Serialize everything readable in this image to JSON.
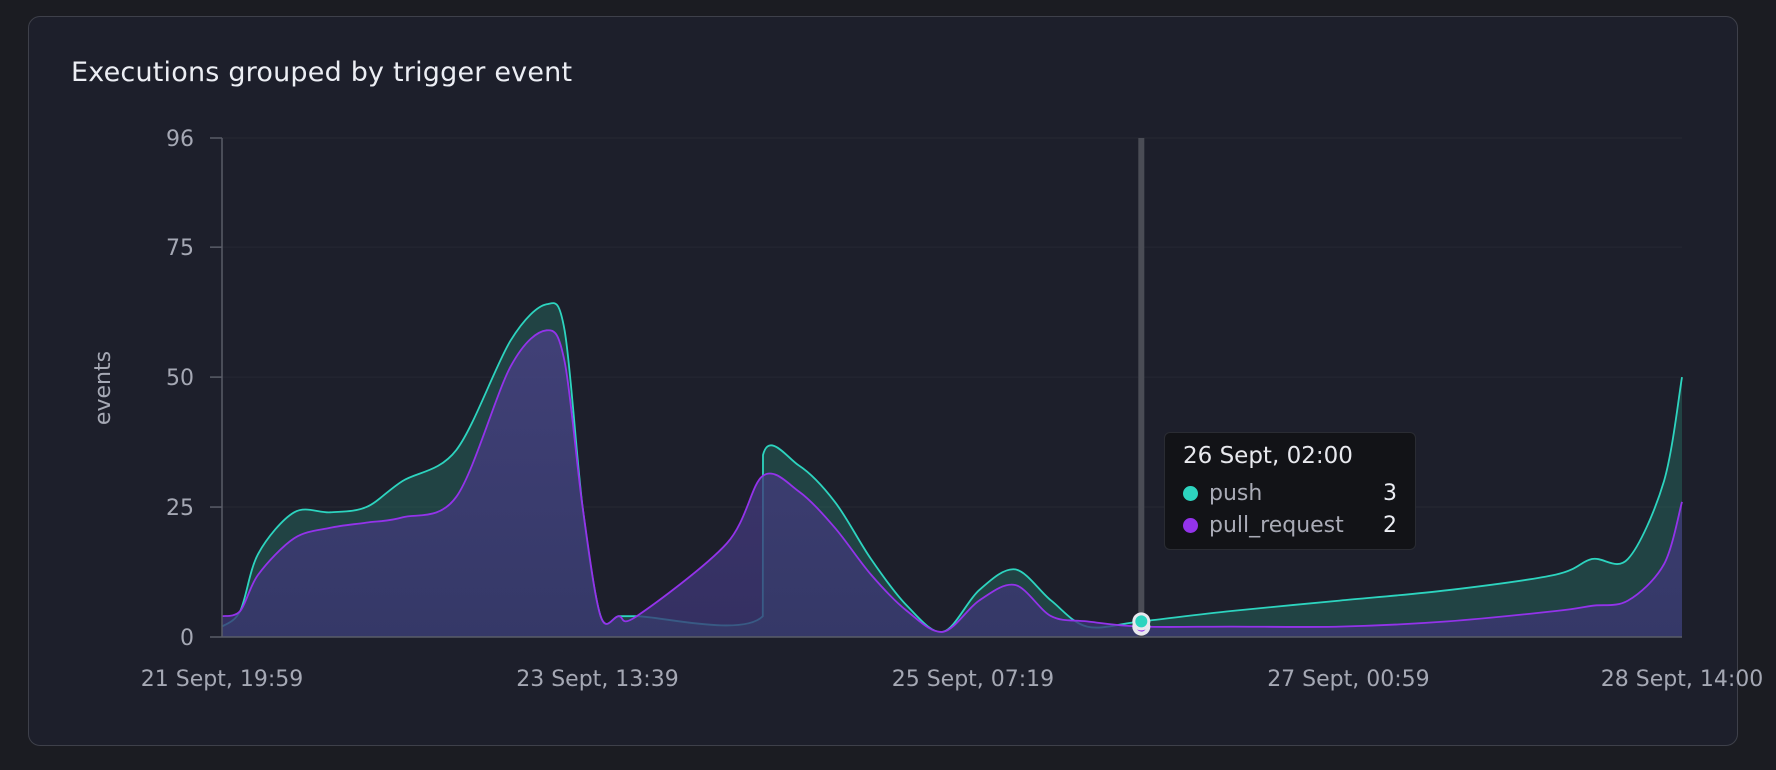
{
  "card": {
    "title": "Executions grouped by trigger event"
  },
  "tooltip": {
    "title": "26 Sept, 02:00",
    "rows": [
      {
        "name": "push",
        "value": "3",
        "color": "#2dd4bf"
      },
      {
        "name": "pull_request",
        "value": "2",
        "color": "#9333ea"
      }
    ]
  },
  "chart_data": {
    "type": "area",
    "title": "Executions grouped by trigger event",
    "xlabel": "",
    "ylabel": "events",
    "ylim": [
      0,
      96
    ],
    "yticks": [
      0,
      25,
      50,
      75,
      96
    ],
    "xticks": [
      "21 Sept, 19:59",
      "23 Sept, 13:39",
      "25 Sept, 07:19",
      "27 Sept, 00:59",
      "28 Sept, 14:00"
    ],
    "x_range": [
      "21 Sept, 19:59",
      "28 Sept, 14:00"
    ],
    "grid": true,
    "legend": "none",
    "highlight": {
      "x": "26 Sept, 02:00",
      "push": 3,
      "pull_request": 2
    },
    "series": [
      {
        "name": "push",
        "color": "#2dd4bf",
        "x": [
          "21 Sept, 19:59",
          "21 Sept, 22:00",
          "22 Sept, 00:00",
          "22 Sept, 04:00",
          "22 Sept, 08:00",
          "22 Sept, 12:00",
          "22 Sept, 16:00",
          "22 Sept, 22:00",
          "23 Sept, 04:00",
          "23 Sept, 08:00",
          "23 Sept, 10:00",
          "23 Sept, 12:00",
          "23 Sept, 14:00",
          "23 Sept, 16:00",
          "23 Sept, 18:00",
          "24 Sept, 08:00",
          "24 Sept, 08:01",
          "24 Sept, 12:00",
          "24 Sept, 16:00",
          "24 Sept, 20:00",
          "25 Sept, 00:00",
          "25 Sept, 04:00",
          "25 Sept, 08:00",
          "25 Sept, 12:00",
          "25 Sept, 16:00",
          "25 Sept, 20:00",
          "26 Sept, 02:00",
          "26 Sept, 12:00",
          "27 Sept, 00:00",
          "27 Sept, 12:00",
          "28 Sept, 00:00",
          "28 Sept, 04:00",
          "28 Sept, 08:00",
          "28 Sept, 12:00",
          "28 Sept, 14:00"
        ],
        "y": [
          2,
          5,
          16,
          24,
          24,
          25,
          30,
          36,
          57,
          64,
          59,
          25,
          4,
          4,
          4,
          4,
          35,
          33,
          26,
          15,
          6,
          1,
          9,
          13,
          7,
          2,
          3,
          5,
          7,
          9,
          12,
          15,
          15,
          30,
          50
        ]
      },
      {
        "name": "pull_request",
        "color": "#9333ea",
        "x": [
          "21 Sept, 19:59",
          "21 Sept, 22:00",
          "22 Sept, 00:00",
          "22 Sept, 04:00",
          "22 Sept, 08:00",
          "22 Sept, 12:00",
          "22 Sept, 16:00",
          "22 Sept, 22:00",
          "23 Sept, 04:00",
          "23 Sept, 08:00",
          "23 Sept, 10:00",
          "23 Sept, 12:00",
          "23 Sept, 14:00",
          "23 Sept, 16:00",
          "23 Sept, 18:00",
          "24 Sept, 04:00",
          "24 Sept, 08:00",
          "24 Sept, 12:00",
          "24 Sept, 16:00",
          "24 Sept, 20:00",
          "25 Sept, 00:00",
          "25 Sept, 04:00",
          "25 Sept, 08:00",
          "25 Sept, 12:00",
          "25 Sept, 16:00",
          "25 Sept, 20:00",
          "26 Sept, 02:00",
          "26 Sept, 12:00",
          "27 Sept, 00:00",
          "27 Sept, 12:00",
          "28 Sept, 00:00",
          "28 Sept, 04:00",
          "28 Sept, 08:00",
          "28 Sept, 12:00",
          "28 Sept, 14:00"
        ],
        "y": [
          4,
          5,
          12,
          19,
          21,
          22,
          23,
          27,
          52,
          59,
          53,
          25,
          4,
          4,
          4,
          18,
          31,
          28,
          21,
          12,
          5,
          1,
          7,
          10,
          4,
          3,
          2,
          2,
          2,
          3,
          5,
          6,
          7,
          14,
          26
        ]
      }
    ]
  }
}
